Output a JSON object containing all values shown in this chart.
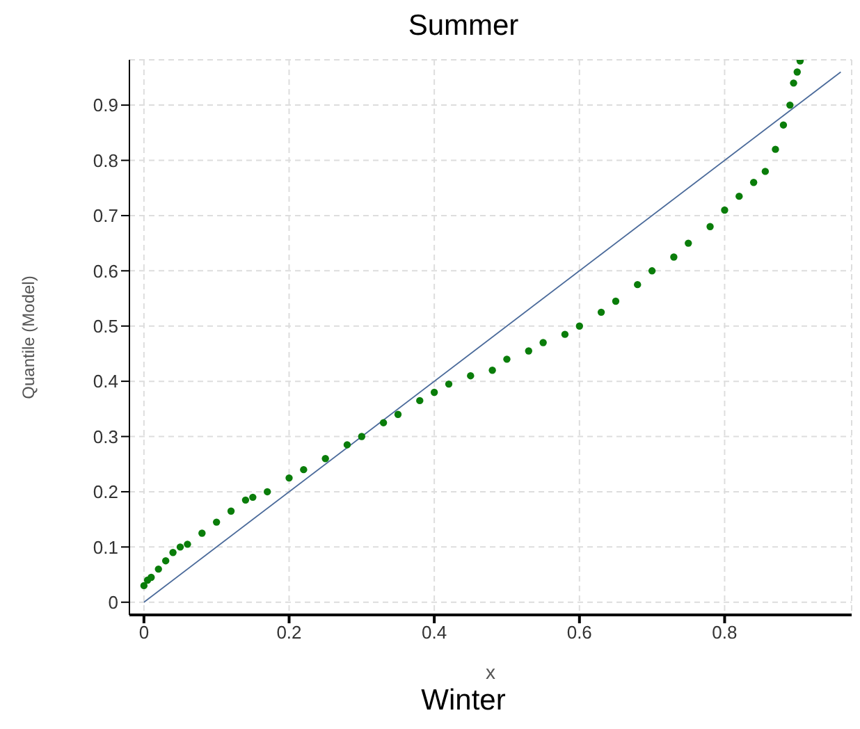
{
  "chart_data": {
    "type": "scatter",
    "title": "Summer",
    "xlabel": "x",
    "ylabel": "Quantile (Model)",
    "annotations": [
      "Winter"
    ],
    "xlim": [
      -0.02,
      0.975
    ],
    "ylim": [
      -0.023,
      0.982
    ],
    "xticks": [
      0,
      0.2,
      0.4,
      0.6,
      0.8
    ],
    "yticks": [
      0,
      0.1,
      0.2,
      0.3,
      0.4,
      0.5,
      0.6,
      0.7,
      0.8,
      0.9
    ],
    "grid": true,
    "series": [
      {
        "marker": "circle",
        "color": "#0a7d0a",
        "x": [
          0,
          0.005,
          0.01,
          0.02,
          0.03,
          0.04,
          0.05,
          0.06,
          0.08,
          0.1,
          0.12,
          0.14,
          0.15,
          0.17,
          0.2,
          0.22,
          0.25,
          0.28,
          0.3,
          0.33,
          0.35,
          0.38,
          0.4,
          0.42,
          0.45,
          0.48,
          0.5,
          0.53,
          0.55,
          0.58,
          0.6,
          0.63,
          0.65,
          0.68,
          0.7,
          0.73,
          0.75,
          0.78,
          0.8,
          0.82,
          0.84,
          0.856,
          0.87,
          0.881,
          0.89,
          0.895,
          0.9,
          0.904
        ],
        "values": [
          0.03,
          0.04,
          0.045,
          0.06,
          0.075,
          0.09,
          0.1,
          0.105,
          0.125,
          0.145,
          0.165,
          0.185,
          0.19,
          0.2,
          0.225,
          0.24,
          0.26,
          0.285,
          0.3,
          0.325,
          0.34,
          0.365,
          0.38,
          0.395,
          0.41,
          0.42,
          0.44,
          0.455,
          0.47,
          0.485,
          0.5,
          0.525,
          0.545,
          0.575,
          0.6,
          0.625,
          0.65,
          0.68,
          0.71,
          0.735,
          0.76,
          0.78,
          0.82,
          0.864,
          0.9,
          0.94,
          0.96,
          0.98
        ]
      },
      {
        "type": "line",
        "marker": "none",
        "color": "#4a6a9a",
        "x": [
          0,
          0.96
        ],
        "values": [
          0,
          0.96
        ]
      }
    ]
  }
}
